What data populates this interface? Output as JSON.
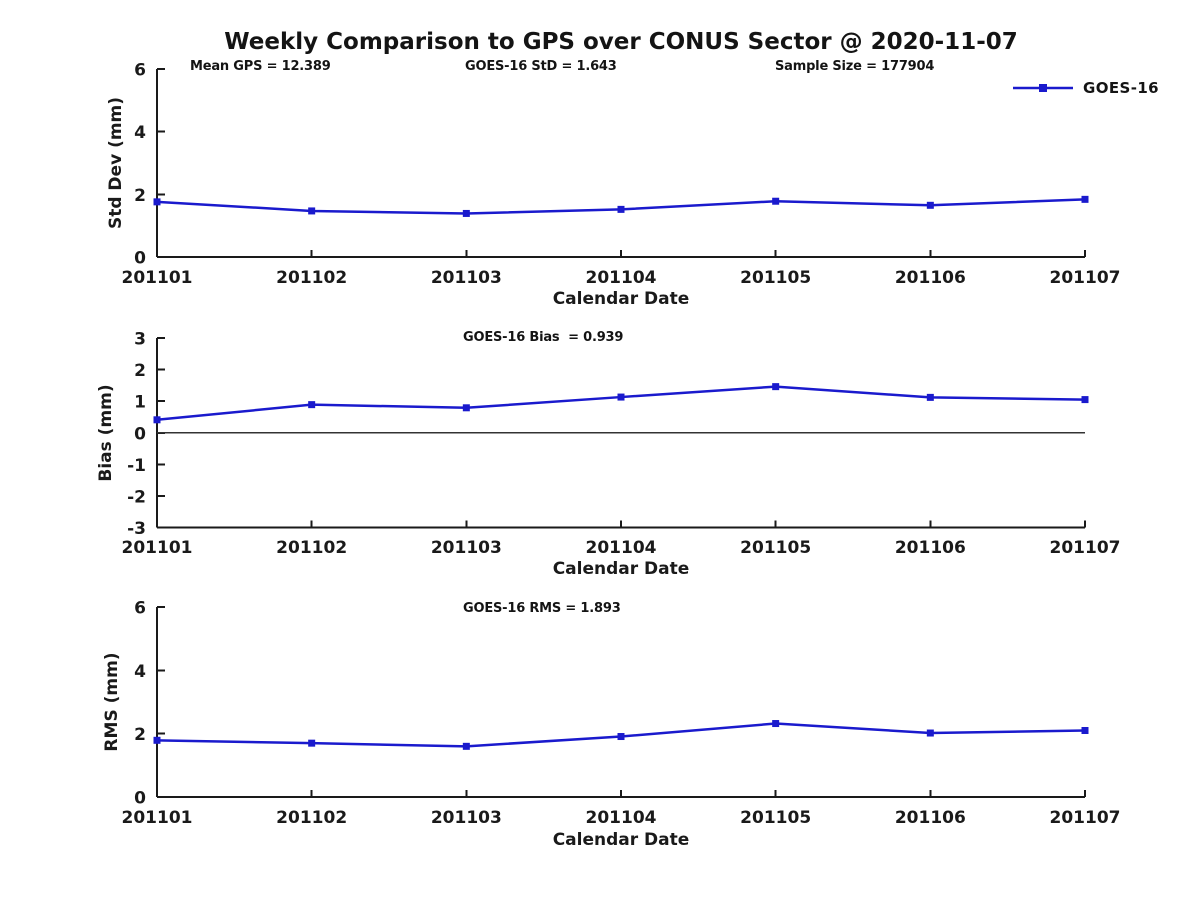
{
  "title": "Weekly Comparison to GPS over CONUS Sector @ 2020-11-07",
  "legend": {
    "label": "GOES-16",
    "color": "#1a1acd"
  },
  "chart_data": [
    {
      "type": "line",
      "name": "std_dev_subplot",
      "annotations": [
        "Mean GPS = 12.389",
        "GOES-16 StD = 1.643",
        "Sample Size = 177904"
      ],
      "categories": [
        "201101",
        "201102",
        "201103",
        "201104",
        "201105",
        "201106",
        "201107"
      ],
      "series": [
        {
          "name": "GOES-16",
          "color": "#1a1acd",
          "values": [
            1.76,
            1.47,
            1.39,
            1.52,
            1.78,
            1.65,
            1.84
          ]
        }
      ],
      "xlabel": "Calendar Date",
      "ylabel": "Std Dev (mm)",
      "ylim": [
        0,
        6
      ],
      "yticks": [
        0,
        2,
        4,
        6
      ],
      "zero_line": false,
      "grid": false,
      "legend_position": "top-right"
    },
    {
      "type": "line",
      "name": "bias_subplot",
      "annotation": "GOES-16 Bias  = 0.939",
      "categories": [
        "201101",
        "201102",
        "201103",
        "201104",
        "201105",
        "201106",
        "201107"
      ],
      "series": [
        {
          "name": "GOES-16",
          "color": "#1a1acd",
          "values": [
            0.41,
            0.89,
            0.79,
            1.13,
            1.46,
            1.12,
            1.05
          ]
        }
      ],
      "xlabel": "Calendar Date",
      "ylabel": "Bias (mm)",
      "ylim": [
        -3,
        3
      ],
      "yticks": [
        -3,
        -2,
        -1,
        0,
        1,
        2,
        3
      ],
      "zero_line": true,
      "grid": false,
      "legend_position": "none"
    },
    {
      "type": "line",
      "name": "rms_subplot",
      "annotation": "GOES-16 RMS = 1.893",
      "categories": [
        "201101",
        "201102",
        "201103",
        "201104",
        "201105",
        "201106",
        "201107"
      ],
      "series": [
        {
          "name": "GOES-16",
          "color": "#1a1acd",
          "values": [
            1.79,
            1.7,
            1.6,
            1.91,
            2.32,
            2.02,
            2.1
          ]
        }
      ],
      "xlabel": "Calendar Date",
      "ylabel": "RMS (mm)",
      "ylim": [
        0,
        6
      ],
      "yticks": [
        0,
        2,
        4,
        6
      ],
      "zero_line": false,
      "grid": false,
      "legend_position": "none"
    }
  ]
}
